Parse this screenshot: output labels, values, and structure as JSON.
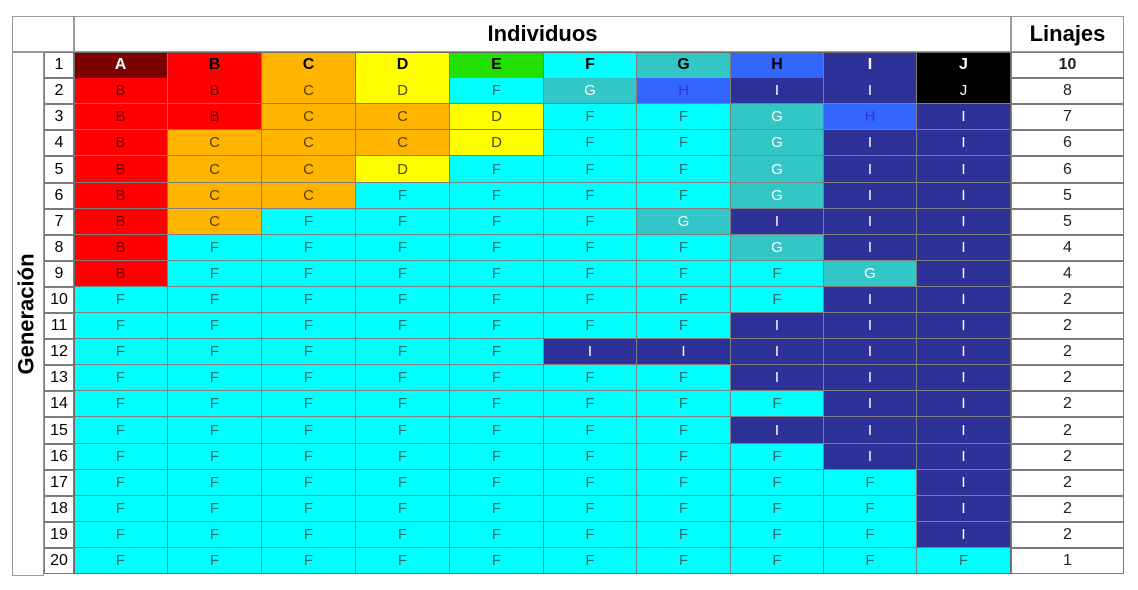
{
  "header": {
    "individuos": "Individuos",
    "linajes": "Linajes",
    "generacion": "Generación"
  },
  "columns": [
    "A",
    "B",
    "C",
    "D",
    "E",
    "F",
    "G",
    "H",
    "I",
    "J"
  ],
  "colors": {
    "A": "#7a0000",
    "B": "#ff0000",
    "C": "#ffb400",
    "D": "#ffff00",
    "E": "#22e000",
    "F": "#00ffff",
    "G": "#33c6c6",
    "H": "#3366ff",
    "I": "#2e3198",
    "J": "#000000"
  },
  "header_text_colors": {
    "A": "#ffffff",
    "B": "#000000",
    "C": "#000000",
    "D": "#000000",
    "E": "#000000",
    "F": "#000000",
    "G": "#000000",
    "H": "#000000",
    "I": "#ffffff",
    "J": "#ffffff"
  },
  "cell_text_colors": {
    "A": "#ffffff",
    "B": "#6a0000",
    "C": "#5a4000",
    "D": "#4a4a00",
    "E": "#004400",
    "F": "#2a6e6e",
    "G": "#ffffff",
    "H": "#2b3bd0",
    "I": "#ffffff",
    "J": "#ffffff"
  },
  "rows": [
    {
      "gen": "1",
      "cells": [
        "A",
        "B",
        "C",
        "D",
        "E",
        "F",
        "G",
        "H",
        "I",
        "J"
      ],
      "linajes": "10"
    },
    {
      "gen": "2",
      "cells": [
        "B",
        "B",
        "C",
        "D",
        "F",
        "G",
        "H",
        "I",
        "I",
        "J"
      ],
      "linajes": "8"
    },
    {
      "gen": "3",
      "cells": [
        "B",
        "B",
        "C",
        "C",
        "D",
        "F",
        "F",
        "G",
        "H",
        "I"
      ],
      "linajes": "7"
    },
    {
      "gen": "4",
      "cells": [
        "B",
        "C",
        "C",
        "C",
        "D",
        "F",
        "F",
        "G",
        "I",
        "I"
      ],
      "linajes": "6"
    },
    {
      "gen": "5",
      "cells": [
        "B",
        "C",
        "C",
        "D",
        "F",
        "F",
        "F",
        "G",
        "I",
        "I"
      ],
      "linajes": "6"
    },
    {
      "gen": "6",
      "cells": [
        "B",
        "C",
        "C",
        "F",
        "F",
        "F",
        "F",
        "G",
        "I",
        "I"
      ],
      "linajes": "5"
    },
    {
      "gen": "7",
      "cells": [
        "B",
        "C",
        "F",
        "F",
        "F",
        "F",
        "G",
        "I",
        "I",
        "I"
      ],
      "linajes": "5"
    },
    {
      "gen": "8",
      "cells": [
        "B",
        "F",
        "F",
        "F",
        "F",
        "F",
        "F",
        "G",
        "I",
        "I"
      ],
      "linajes": "4"
    },
    {
      "gen": "9",
      "cells": [
        "B",
        "F",
        "F",
        "F",
        "F",
        "F",
        "F",
        "F",
        "G",
        "I"
      ],
      "linajes": "4"
    },
    {
      "gen": "10",
      "cells": [
        "F",
        "F",
        "F",
        "F",
        "F",
        "F",
        "F",
        "F",
        "I",
        "I"
      ],
      "linajes": "2"
    },
    {
      "gen": "11",
      "cells": [
        "F",
        "F",
        "F",
        "F",
        "F",
        "F",
        "F",
        "I",
        "I",
        "I"
      ],
      "linajes": "2"
    },
    {
      "gen": "12",
      "cells": [
        "F",
        "F",
        "F",
        "F",
        "F",
        "I",
        "I",
        "I",
        "I",
        "I"
      ],
      "linajes": "2"
    },
    {
      "gen": "13",
      "cells": [
        "F",
        "F",
        "F",
        "F",
        "F",
        "F",
        "F",
        "I",
        "I",
        "I"
      ],
      "linajes": "2"
    },
    {
      "gen": "14",
      "cells": [
        "F",
        "F",
        "F",
        "F",
        "F",
        "F",
        "F",
        "F",
        "I",
        "I"
      ],
      "linajes": "2"
    },
    {
      "gen": "15",
      "cells": [
        "F",
        "F",
        "F",
        "F",
        "F",
        "F",
        "F",
        "I",
        "I",
        "I"
      ],
      "linajes": "2"
    },
    {
      "gen": "16",
      "cells": [
        "F",
        "F",
        "F",
        "F",
        "F",
        "F",
        "F",
        "F",
        "I",
        "I"
      ],
      "linajes": "2"
    },
    {
      "gen": "17",
      "cells": [
        "F",
        "F",
        "F",
        "F",
        "F",
        "F",
        "F",
        "F",
        "F",
        "I"
      ],
      "linajes": "2"
    },
    {
      "gen": "18",
      "cells": [
        "F",
        "F",
        "F",
        "F",
        "F",
        "F",
        "F",
        "F",
        "F",
        "I"
      ],
      "linajes": "2"
    },
    {
      "gen": "19",
      "cells": [
        "F",
        "F",
        "F",
        "F",
        "F",
        "F",
        "F",
        "F",
        "F",
        "I"
      ],
      "linajes": "2"
    },
    {
      "gen": "20",
      "cells": [
        "F",
        "F",
        "F",
        "F",
        "F",
        "F",
        "F",
        "F",
        "F",
        "F"
      ],
      "linajes": "1"
    }
  ]
}
